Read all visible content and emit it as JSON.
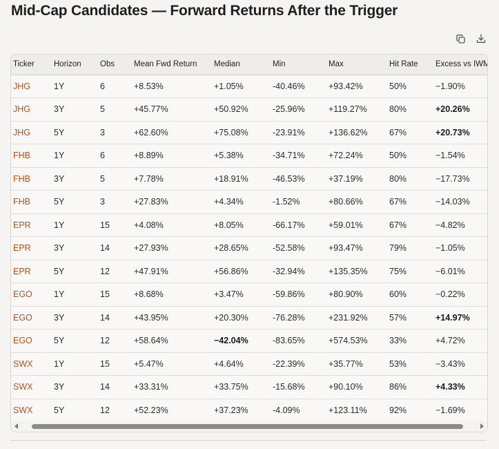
{
  "page": {
    "title": "Mid-Cap Candidates — Forward Returns After the Trigger"
  },
  "toolbar": {
    "copy_icon": "copy-icon",
    "download_icon": "download-icon"
  },
  "colors": {
    "ticker": "#b2531f",
    "background": "#f5f4f2",
    "header_bg": "#eeedea"
  },
  "table": {
    "columns": [
      "Ticker",
      "Horizon",
      "Obs",
      "Mean Fwd Return",
      "Median",
      "Min",
      "Max",
      "Hit Rate",
      "Excess vs IWM"
    ],
    "rows": [
      {
        "cells": [
          "JHG",
          "1Y",
          "6",
          "+8.53%",
          "+1.05%",
          "-40.46%",
          "+93.42%",
          "50%",
          "−1.90%"
        ],
        "bold": []
      },
      {
        "cells": [
          "JHG",
          "3Y",
          "5",
          "+45.77%",
          "+50.92%",
          "-25.96%",
          "+119.27%",
          "80%",
          "+20.26%"
        ],
        "bold": [
          8
        ]
      },
      {
        "cells": [
          "JHG",
          "5Y",
          "3",
          "+62.60%",
          "+75.08%",
          "-23.91%",
          "+136.62%",
          "67%",
          "+20.73%"
        ],
        "bold": [
          8
        ]
      },
      {
        "cells": [
          "FHB",
          "1Y",
          "6",
          "+8.89%",
          "+5.38%",
          "-34.71%",
          "+72.24%",
          "50%",
          "−1.54%"
        ],
        "bold": []
      },
      {
        "cells": [
          "FHB",
          "3Y",
          "5",
          "+7.78%",
          "+18.91%",
          "-46.53%",
          "+37.19%",
          "80%",
          "−17.73%"
        ],
        "bold": []
      },
      {
        "cells": [
          "FHB",
          "5Y",
          "3",
          "+27.83%",
          "+4.34%",
          "-1.52%",
          "+80.66%",
          "67%",
          "−14.03%"
        ],
        "bold": []
      },
      {
        "cells": [
          "EPR",
          "1Y",
          "15",
          "+4.08%",
          "+8.05%",
          "-66.17%",
          "+59.01%",
          "67%",
          "−4.82%"
        ],
        "bold": []
      },
      {
        "cells": [
          "EPR",
          "3Y",
          "14",
          "+27.93%",
          "+28.65%",
          "-52.58%",
          "+93.47%",
          "79%",
          "−1.05%"
        ],
        "bold": []
      },
      {
        "cells": [
          "EPR",
          "5Y",
          "12",
          "+47.91%",
          "+56.86%",
          "-32.94%",
          "+135.35%",
          "75%",
          "−6.01%"
        ],
        "bold": []
      },
      {
        "cells": [
          "EGO",
          "1Y",
          "15",
          "+8.68%",
          "+3.47%",
          "-59.86%",
          "+80.90%",
          "60%",
          "−0.22%"
        ],
        "bold": []
      },
      {
        "cells": [
          "EGO",
          "3Y",
          "14",
          "+43.95%",
          "+20.30%",
          "-76.28%",
          "+231.92%",
          "57%",
          "+14.97%"
        ],
        "bold": [
          8
        ]
      },
      {
        "cells": [
          "EGO",
          "5Y",
          "12",
          "+58.64%",
          "−42.04%",
          "-83.65%",
          "+574.53%",
          "33%",
          "+4.72%"
        ],
        "bold": [
          4
        ]
      },
      {
        "cells": [
          "SWX",
          "1Y",
          "15",
          "+5.47%",
          "+4.64%",
          "-22.39%",
          "+35.77%",
          "53%",
          "−3.43%"
        ],
        "bold": []
      },
      {
        "cells": [
          "SWX",
          "3Y",
          "14",
          "+33.31%",
          "+33.75%",
          "-15.68%",
          "+90.10%",
          "86%",
          "+4.33%"
        ],
        "bold": [
          8
        ]
      },
      {
        "cells": [
          "SWX",
          "5Y",
          "12",
          "+52.23%",
          "+37.23%",
          "-4.09%",
          "+123.11%",
          "92%",
          "−1.69%"
        ],
        "bold": []
      }
    ]
  }
}
